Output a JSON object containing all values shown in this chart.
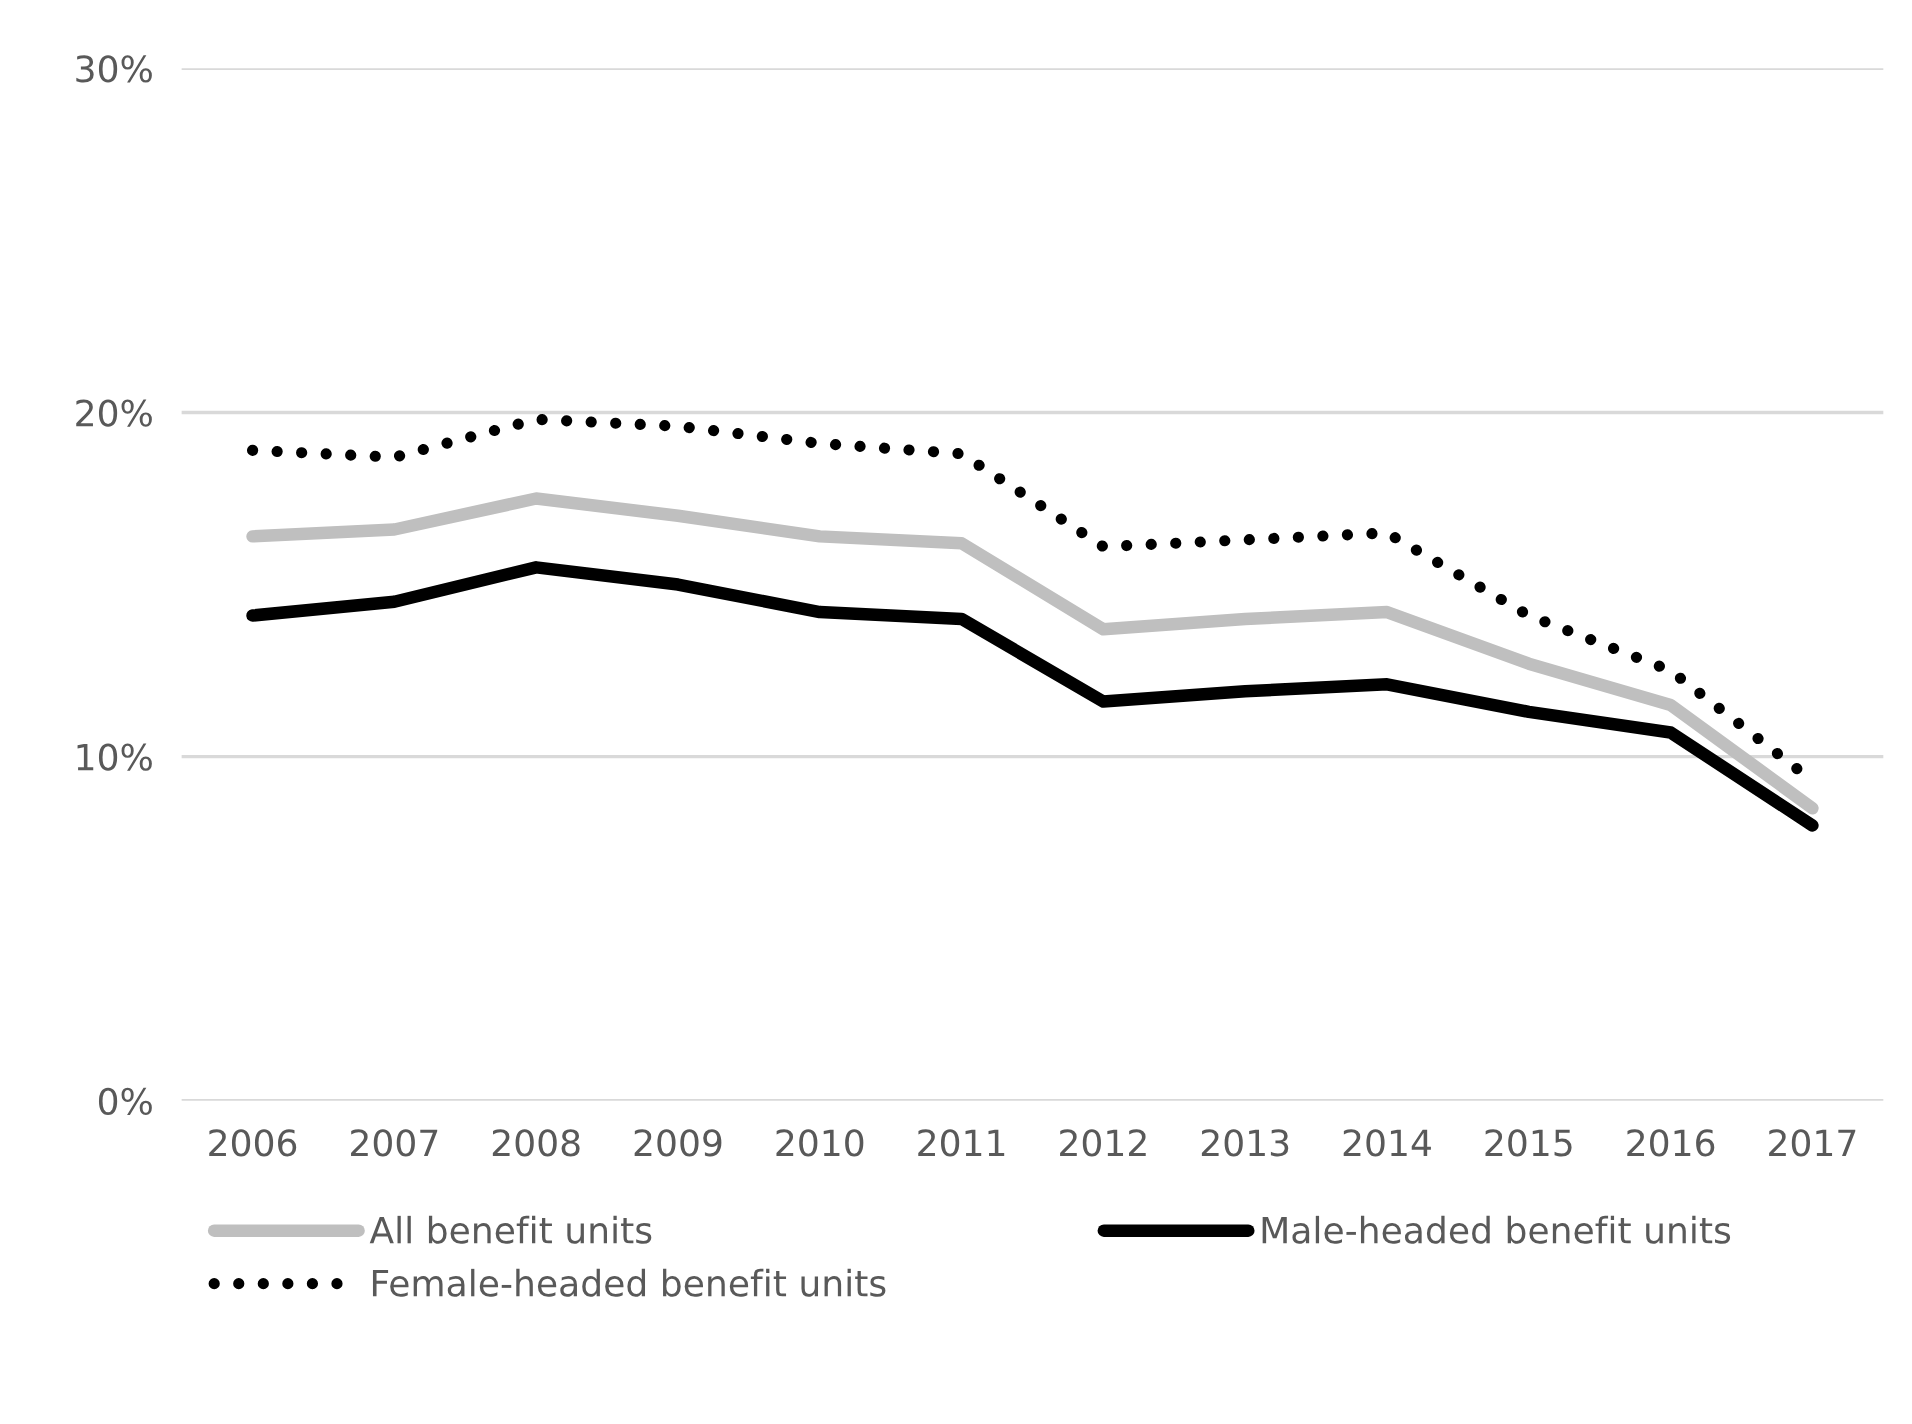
{
  "chart_data": {
    "type": "line",
    "categories": [
      "2006",
      "2007",
      "2008",
      "2009",
      "2010",
      "2011",
      "2012",
      "2013",
      "2014",
      "2015",
      "2016",
      "2017"
    ],
    "series": [
      {
        "name": "All benefit units",
        "color": "#bfbfbf",
        "line_style": "solid",
        "values": [
          16.4,
          16.6,
          17.5,
          17.0,
          16.4,
          16.2,
          13.7,
          14.0,
          14.2,
          12.7,
          11.5,
          8.5
        ]
      },
      {
        "name": "Female-headed benefit units",
        "color": "#000000",
        "line_style": "dotted",
        "values": [
          18.9,
          18.7,
          19.8,
          19.6,
          19.1,
          18.8,
          16.1,
          16.3,
          16.5,
          14.1,
          12.5,
          9.3
        ]
      },
      {
        "name": "Male-headed benefit units",
        "color": "#000000",
        "line_style": "solid",
        "values": [
          14.1,
          14.5,
          15.5,
          15.0,
          14.2,
          14.0,
          11.6,
          11.9,
          12.1,
          11.3,
          10.7,
          8.0
        ]
      }
    ],
    "ylim": [
      0,
      30
    ],
    "yticks": [
      {
        "value": 0,
        "label": "0%"
      },
      {
        "value": 10,
        "label": "10%"
      },
      {
        "value": 20,
        "label": "20%"
      },
      {
        "value": 30,
        "label": "30%"
      }
    ],
    "grid": "y",
    "legend": "bottom",
    "marker": "none"
  }
}
